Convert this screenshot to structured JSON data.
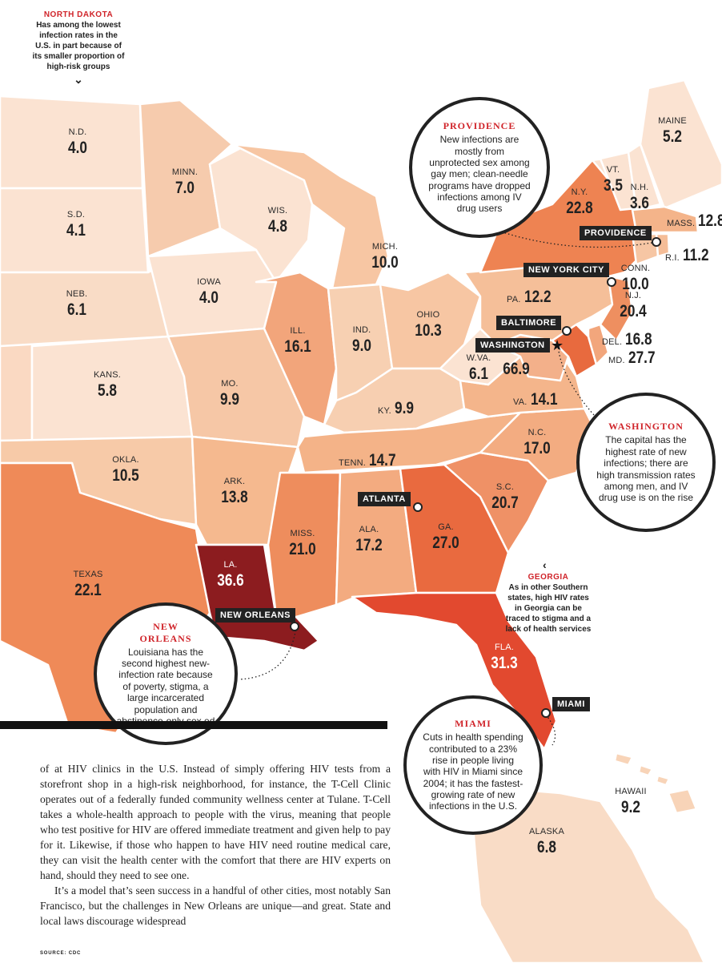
{
  "states": [
    {
      "id": "nd",
      "abbr": "N.D.",
      "rate": "4.0",
      "fill": "#fbe3d2"
    },
    {
      "id": "sd",
      "abbr": "S.D.",
      "rate": "4.1",
      "fill": "#fbe3d2"
    },
    {
      "id": "neb",
      "abbr": "NEB.",
      "rate": "6.1",
      "fill": "#f9dcc6"
    },
    {
      "id": "kans",
      "abbr": "KANS.",
      "rate": "5.8",
      "fill": "#fbe3d2"
    },
    {
      "id": "okla",
      "abbr": "OKLA.",
      "rate": "10.5",
      "fill": "#f7caa8"
    },
    {
      "id": "texas",
      "abbr": "TEXAS",
      "rate": "22.1",
      "fill": "#ef8a58"
    },
    {
      "id": "minn",
      "abbr": "MINN.",
      "rate": "7.0",
      "fill": "#f6cbad"
    },
    {
      "id": "iowa",
      "abbr": "IOWA",
      "rate": "4.0",
      "fill": "#fbe3d2"
    },
    {
      "id": "mo",
      "abbr": "MO.",
      "rate": "9.9",
      "fill": "#f6c7a6"
    },
    {
      "id": "ark",
      "abbr": "ARK.",
      "rate": "13.8",
      "fill": "#f5b98f"
    },
    {
      "id": "la",
      "abbr": "LA.",
      "rate": "36.6",
      "fill": "#8c1c1f"
    },
    {
      "id": "wis",
      "abbr": "WIS.",
      "rate": "4.8",
      "fill": "#fbe3d2"
    },
    {
      "id": "ill",
      "abbr": "ILL.",
      "rate": "16.1",
      "fill": "#f2a57b"
    },
    {
      "id": "mich",
      "abbr": "MICH.",
      "rate": "10.0",
      "fill": "#f7c6a3"
    },
    {
      "id": "ind",
      "abbr": "IND.",
      "rate": "9.0",
      "fill": "#f7d0b2"
    },
    {
      "id": "ohio",
      "abbr": "OHIO",
      "rate": "10.3",
      "fill": "#f7c6a3"
    },
    {
      "id": "ky",
      "abbr": "KY.",
      "rate": "9.9",
      "fill": "#f7cfb1"
    },
    {
      "id": "tenn",
      "abbr": "TENN.",
      "rate": "14.7",
      "fill": "#f4b388"
    },
    {
      "id": "miss",
      "abbr": "MISS.",
      "rate": "21.0",
      "fill": "#ee8d5d"
    },
    {
      "id": "ala",
      "abbr": "ALA.",
      "rate": "17.2",
      "fill": "#f3ab80"
    },
    {
      "id": "ga",
      "abbr": "GA.",
      "rate": "27.0",
      "fill": "#e96a3f"
    },
    {
      "id": "fla",
      "abbr": "FLA.",
      "rate": "31.3",
      "fill": "#e2492f"
    },
    {
      "id": "sc",
      "abbr": "S.C.",
      "rate": "20.7",
      "fill": "#ef9166"
    },
    {
      "id": "nc",
      "abbr": "N.C.",
      "rate": "17.0",
      "fill": "#f3ac81"
    },
    {
      "id": "va",
      "abbr": "VA.",
      "rate": "14.1",
      "fill": "#f4b58b"
    },
    {
      "id": "wva",
      "abbr": "W.VA.",
      "rate": "6.1",
      "fill": "#fbe3d2"
    },
    {
      "id": "dc",
      "abbr": "",
      "rate": "66.9",
      "fill": "#f3b08a"
    },
    {
      "id": "md",
      "abbr": "MD.",
      "rate": "27.7",
      "fill": "#e86a3e"
    },
    {
      "id": "del",
      "abbr": "DEL.",
      "rate": "16.8",
      "fill": "#f2a67c"
    },
    {
      "id": "nj",
      "abbr": "N.J.",
      "rate": "20.4",
      "fill": "#ee8f60"
    },
    {
      "id": "pa",
      "abbr": "PA.",
      "rate": "12.2",
      "fill": "#f5bf99"
    },
    {
      "id": "ny",
      "abbr": "N.Y.",
      "rate": "22.8",
      "fill": "#ee8352"
    },
    {
      "id": "vt",
      "abbr": "VT.",
      "rate": "3.5",
      "fill": "#fbe3d2"
    },
    {
      "id": "nh",
      "abbr": "N.H.",
      "rate": "3.6",
      "fill": "#fbe3d2"
    },
    {
      "id": "maine",
      "abbr": "MAINE",
      "rate": "5.2",
      "fill": "#fbe3d2"
    },
    {
      "id": "mass",
      "abbr": "MASS.",
      "rate": "12.8",
      "fill": "#f4b48a"
    },
    {
      "id": "ri",
      "abbr": "R.I.",
      "rate": "11.2",
      "fill": "#f5bd97"
    },
    {
      "id": "conn",
      "abbr": "CONN.",
      "rate": "10.0",
      "fill": "#f6c6a4"
    },
    {
      "id": "hawaii",
      "abbr": "HAWAII",
      "rate": "9.2",
      "fill": "#f8d4b8"
    },
    {
      "id": "alaska",
      "abbr": "ALASKA",
      "rate": "6.8",
      "fill": "#f9dcc6"
    }
  ],
  "other_fill": "#fad9c2",
  "cities": {
    "providence": "PROVIDENCE",
    "new_york": "NEW YORK CITY",
    "baltimore": "BALTIMORE",
    "washington": "WASHINGTON",
    "atlanta": "ATLANTA",
    "new_orleans": "NEW ORLEANS",
    "miami": "MIAMI"
  },
  "bubbles": {
    "providence": {
      "title": "PROVIDENCE",
      "body": "New infections are mostly from unprotected sex among gay men; clean-needle programs have dropped infections among IV drug users"
    },
    "washington": {
      "title": "WASHINGTON",
      "body": "The capital has the highest rate of new infections; there are high transmission rates among men, and IV drug use is on the rise"
    },
    "new_orleans": {
      "title": "NEW ORLEANS",
      "body": "Louisiana has the second highest new-infection rate because of poverty, stigma, a large incarcerated population and abstinence-only sex ed"
    },
    "miami": {
      "title": "MIAMI",
      "body": "Cuts in health spending contributed to a 23% rise in people living with HIV in Miami since 2004; it has the fastest-growing rate of new infections in the U.S."
    }
  },
  "notes": {
    "north_dakota": {
      "title": "NORTH DAKOTA",
      "body": "Has among the lowest infection rates in the U.S. in part because of its smaller proportion of high-risk groups"
    },
    "georgia": {
      "title": "GEORGIA",
      "body": "As in other Southern states, high HIV rates in Georgia can be traced to stigma and a lack of health services"
    }
  },
  "article": {
    "p1": "of at HIV clinics in the U.S. Instead of simply offering HIV tests from a storefront shop in a high-risk neighborhood, for instance, the T-Cell Clinic operates out of a federally funded community wellness center at Tulane. T-Cell takes a whole-health approach to people with the virus, meaning that people who test positive for HIV are offered immediate treatment and given help to pay for it. Likewise, if those who happen to have HIV need routine medical care, they can visit the health center with the comfort that there are HIV experts on hand, should they need to see one.",
    "p2": "It’s a model that’s seen success in a handful of other cities, most notably San Francisco, but the challenges in New Orleans are unique—and great. State and local laws discourage widespread"
  },
  "source": "SOURCE: CDC"
}
